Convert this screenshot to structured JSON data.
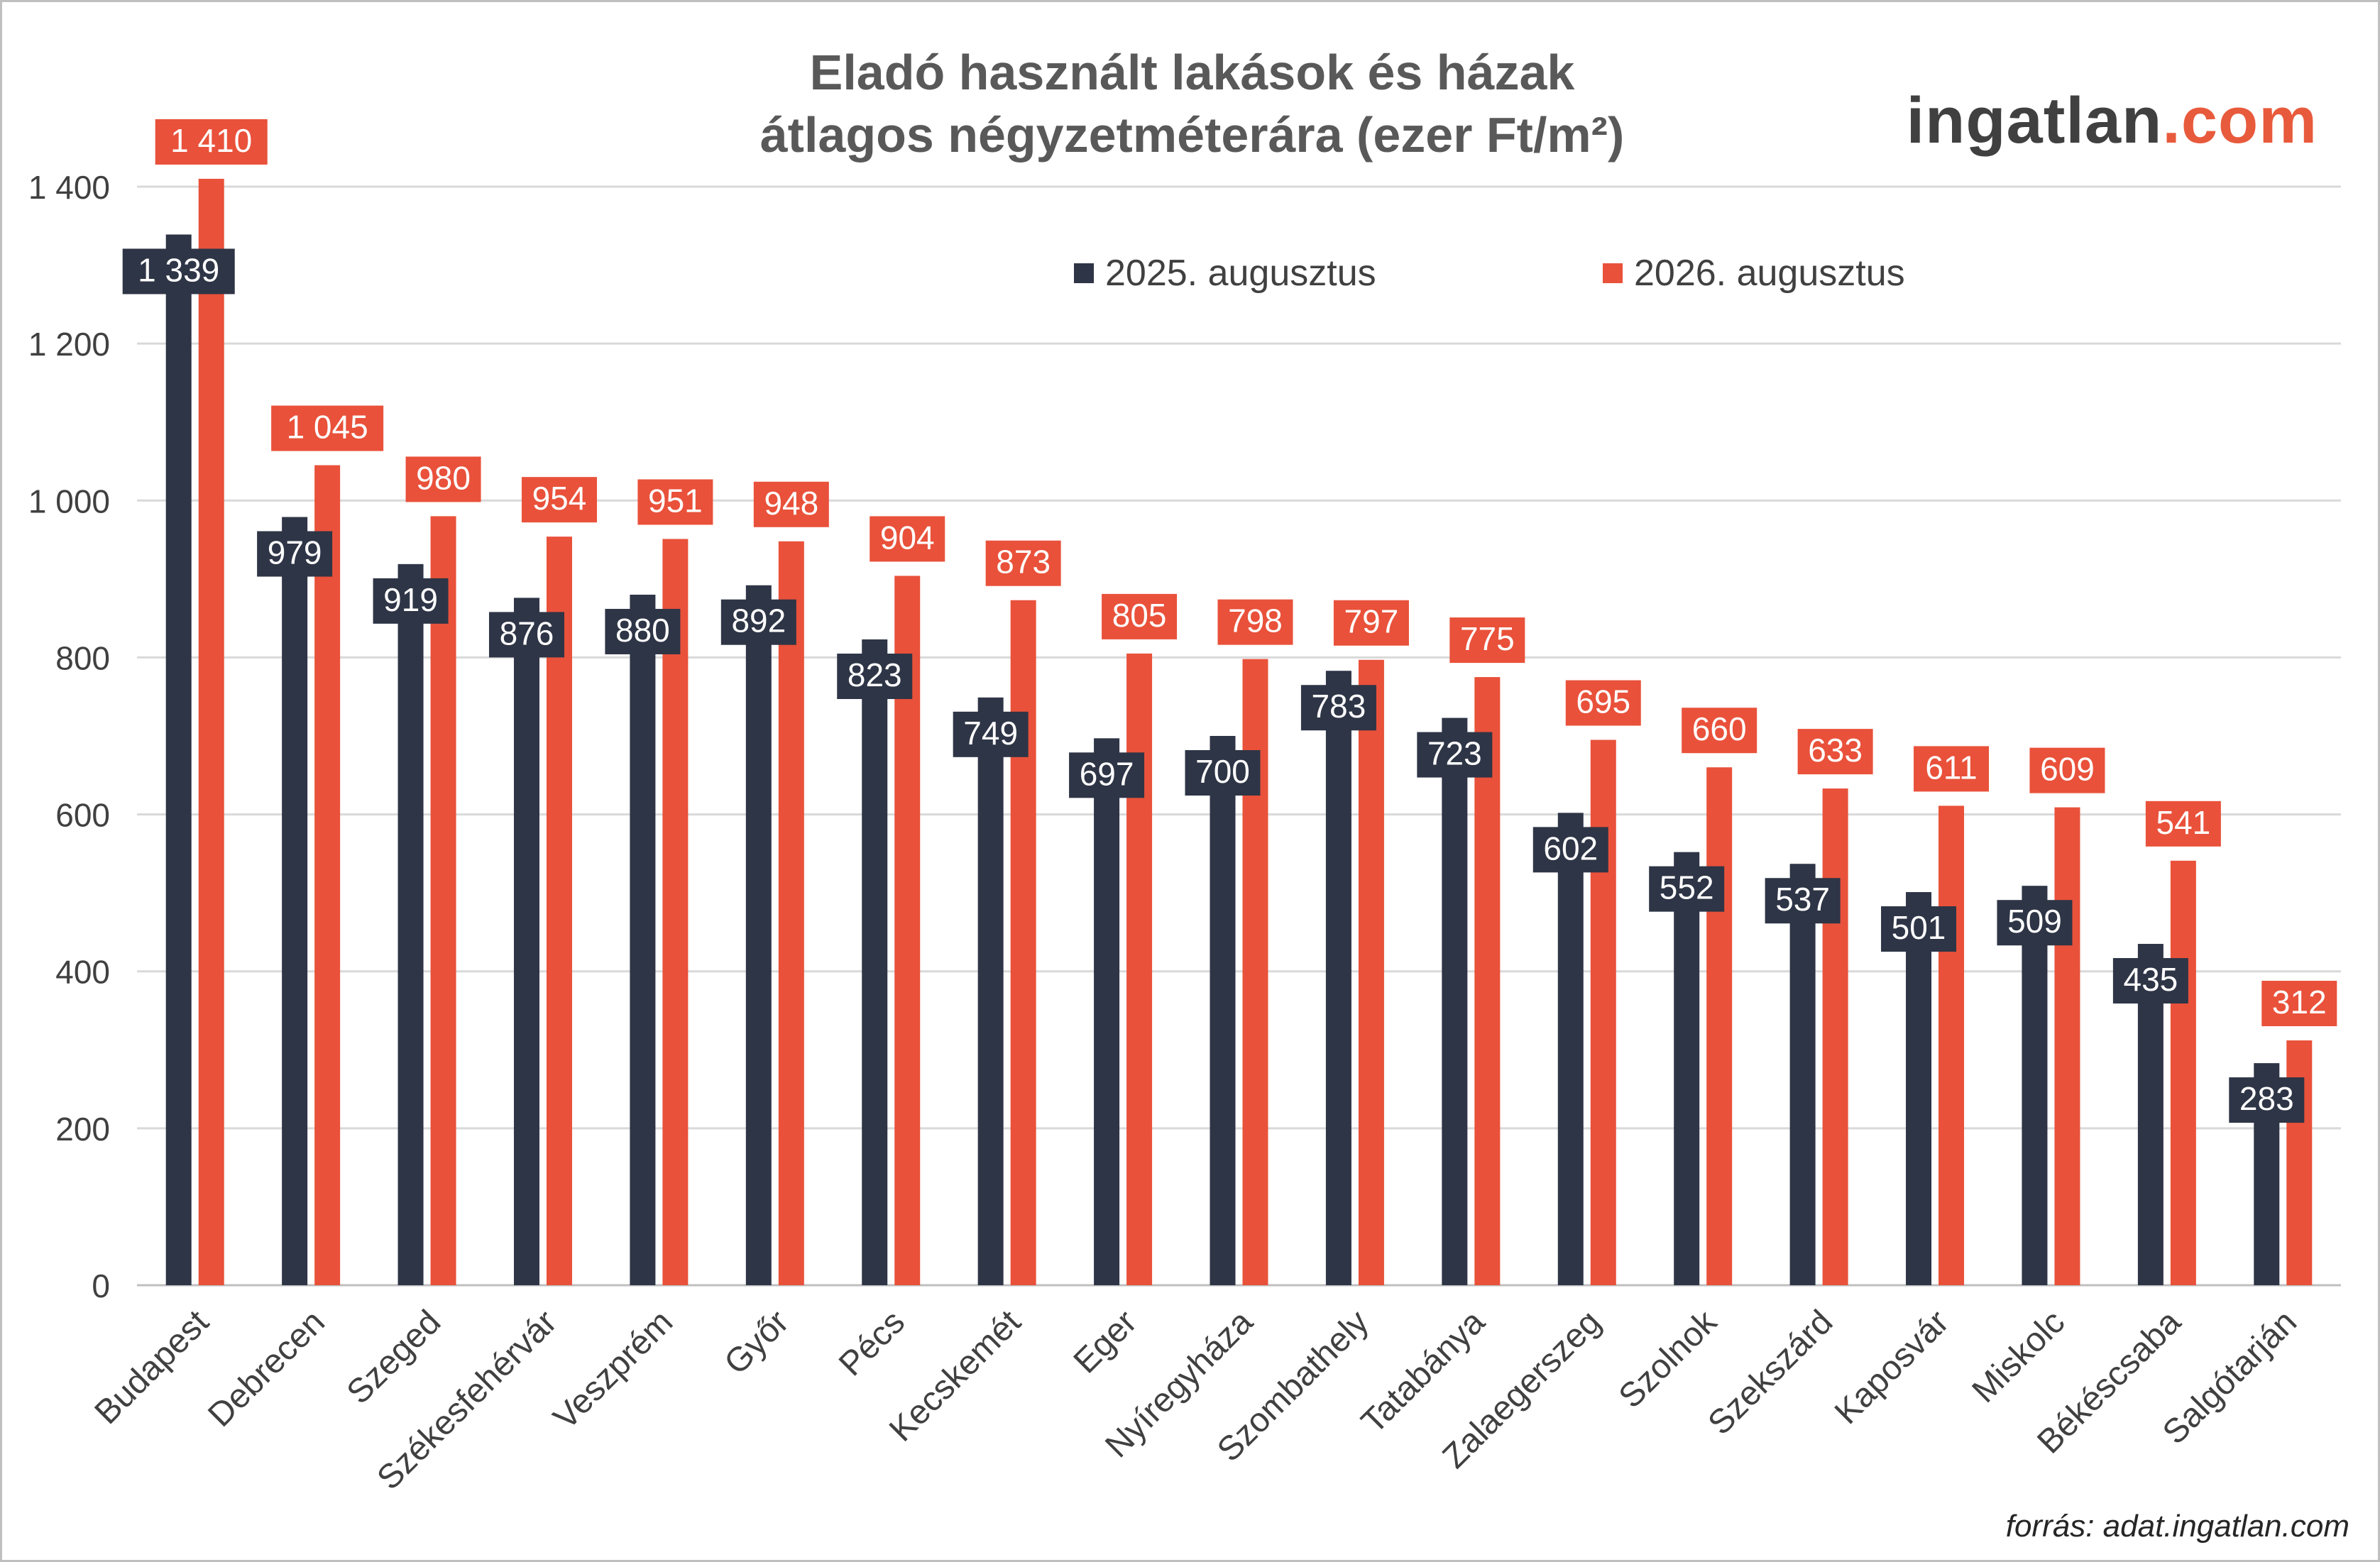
{
  "chart_data": {
    "type": "bar",
    "title_lines": [
      "Eladó használt lakások és házak",
      "átlagos négyzetméterára (ezer Ft/m²)"
    ],
    "xlabel": "",
    "ylabel": "",
    "ylim": [
      0,
      1500
    ],
    "yticks": [
      0,
      200,
      400,
      600,
      800,
      1000,
      1200,
      1400
    ],
    "ytick_labels": [
      "0",
      "200",
      "400",
      "600",
      "800",
      "1 000",
      "1 200",
      "1 400"
    ],
    "grid": true,
    "legend_position": "top-right",
    "categories": [
      "Budapest",
      "Debrecen",
      "Szeged",
      "Székesfehérvár",
      "Veszprém",
      "Győr",
      "Pécs",
      "Kecskemét",
      "Eger",
      "Nyíregyháza",
      "Szombathely",
      "Tatabánya",
      "Zalaegerszeg",
      "Szolnok",
      "Szekszárd",
      "Kaposvár",
      "Miskolc",
      "Békéscsaba",
      "Salgótarján"
    ],
    "series": [
      {
        "name": "2025. augusztus",
        "color": "#2e3546",
        "values": [
          1339,
          979,
          919,
          876,
          880,
          892,
          823,
          749,
          697,
          700,
          783,
          723,
          602,
          552,
          537,
          501,
          509,
          435,
          283
        ],
        "labels": [
          "1 339",
          "979",
          "919",
          "876",
          "880",
          "892",
          "823",
          "749",
          "697",
          "700",
          "783",
          "723",
          "602",
          "552",
          "537",
          "501",
          "509",
          "435",
          "283"
        ]
      },
      {
        "name": "2026. augusztus",
        "color": "#e9513a",
        "values": [
          1410,
          1045,
          980,
          954,
          951,
          948,
          904,
          873,
          805,
          798,
          797,
          775,
          695,
          660,
          633,
          611,
          609,
          541,
          312
        ],
        "labels": [
          "1 410",
          "1 045",
          "980",
          "954",
          "951",
          "948",
          "904",
          "873",
          "805",
          "798",
          "797",
          "775",
          "695",
          "660",
          "633",
          "611",
          "609",
          "541",
          "312"
        ]
      }
    ]
  },
  "logo": {
    "part1": "ingatlan",
    "part2": ".com"
  },
  "source": "forrás: adat.ingatlan.com"
}
